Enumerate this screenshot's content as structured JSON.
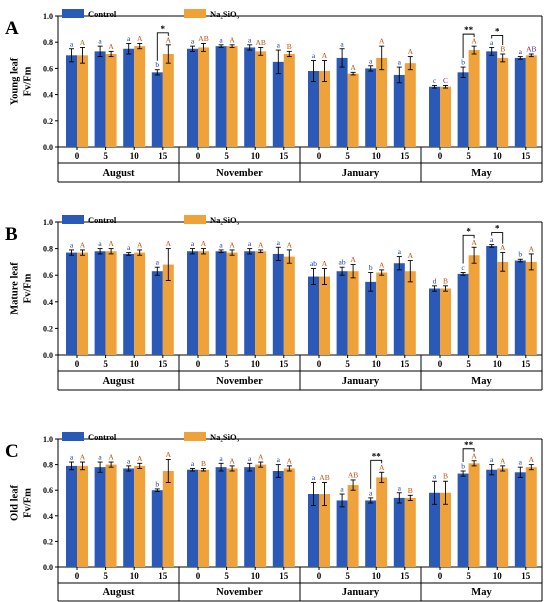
{
  "colors": {
    "control": "#2b59b8",
    "treatment": "#f0a23a",
    "upper_letter": "#b8520f",
    "lower_letter": "#1a3bb0",
    "purple_letter": "#7a1f8a"
  },
  "chart_data": [
    {
      "type": "bar",
      "panel": "A",
      "ylabel": "Young leaf\nFv/Fm",
      "ylim": [
        0,
        1.0
      ],
      "yticks": [
        "0.0",
        "0.2",
        "0.4",
        "0.6",
        "0.8",
        "1.0"
      ],
      "months": [
        "August",
        "November",
        "January",
        "May"
      ],
      "x_ticks": [
        "0",
        "5",
        "10",
        "15"
      ],
      "series": [
        {
          "name": "Control",
          "values": [
            [
              0.7,
              0.73,
              0.75,
              0.57
            ],
            [
              0.75,
              0.77,
              0.76,
              0.65
            ],
            [
              0.58,
              0.68,
              0.6,
              0.55
            ],
            [
              0.46,
              0.57,
              0.73,
              0.68
            ]
          ],
          "errors": [
            [
              0.05,
              0.04,
              0.04,
              0.02
            ],
            [
              0.02,
              0.01,
              0.02,
              0.09
            ],
            [
              0.08,
              0.07,
              0.02,
              0.06
            ],
            [
              0.01,
              0.04,
              0.03,
              0.01
            ]
          ],
          "letters": [
            [
              "a",
              "a",
              "a",
              "b"
            ],
            [
              "a",
              "a",
              "a",
              "a"
            ],
            [
              "a",
              "a",
              "a",
              "a"
            ],
            [
              "c",
              "b",
              "a",
              "a"
            ]
          ]
        },
        {
          "name": "Na₂SiO₃",
          "values": [
            [
              0.7,
              0.71,
              0.77,
              0.71
            ],
            [
              0.76,
              0.77,
              0.73,
              0.71
            ],
            [
              0.58,
              0.56,
              0.68,
              0.64
            ],
            [
              0.46,
              0.74,
              0.68,
              0.7
            ]
          ],
          "errors": [
            [
              0.06,
              0.02,
              0.02,
              0.07
            ],
            [
              0.03,
              0.01,
              0.03,
              0.02
            ],
            [
              0.08,
              0.01,
              0.09,
              0.05
            ],
            [
              0.01,
              0.03,
              0.03,
              0.01
            ]
          ],
          "letters": [
            [
              "A",
              "A",
              "A",
              "A"
            ],
            [
              "AB",
              "A",
              "AB",
              "B"
            ],
            [
              "A",
              "A",
              "A",
              "A"
            ],
            [
              "C",
              "A",
              "B",
              "AB"
            ]
          ]
        }
      ],
      "significance": [
        {
          "month": 0,
          "tick": 3,
          "label": "*"
        },
        {
          "month": 3,
          "tick": 1,
          "label": "**"
        },
        {
          "month": 3,
          "tick": 2,
          "label": "*"
        }
      ]
    },
    {
      "type": "bar",
      "panel": "B",
      "ylabel": "Mature leaf\nFv/Fm",
      "ylim": [
        0,
        1.0
      ],
      "yticks": [
        "0.0",
        "0.2",
        "0.4",
        "0.6",
        "0.8",
        "1.0"
      ],
      "months": [
        "August",
        "November",
        "January",
        "May"
      ],
      "x_ticks": [
        "0",
        "5",
        "10",
        "15"
      ],
      "series": [
        {
          "name": "Control",
          "values": [
            [
              0.77,
              0.78,
              0.76,
              0.63
            ],
            [
              0.78,
              0.78,
              0.78,
              0.76
            ],
            [
              0.59,
              0.63,
              0.55,
              0.69
            ],
            [
              0.5,
              0.61,
              0.82,
              0.71
            ]
          ],
          "errors": [
            [
              0.02,
              0.02,
              0.01,
              0.03
            ],
            [
              0.02,
              0.01,
              0.02,
              0.05
            ],
            [
              0.06,
              0.03,
              0.07,
              0.05
            ],
            [
              0.02,
              0.01,
              0.01,
              0.01
            ]
          ],
          "letters": [
            [
              "a",
              "a",
              "a",
              "a"
            ],
            [
              "a",
              "a",
              "a",
              "a"
            ],
            [
              "ab",
              "ab",
              "b",
              "a"
            ],
            [
              "d",
              "c",
              "a",
              "b"
            ]
          ]
        },
        {
          "name": "Na₂SiO₃",
          "values": [
            [
              0.77,
              0.78,
              0.77,
              0.68
            ],
            [
              0.78,
              0.77,
              0.78,
              0.74
            ],
            [
              0.59,
              0.63,
              0.62,
              0.63
            ],
            [
              0.5,
              0.75,
              0.7,
              0.7
            ]
          ],
          "errors": [
            [
              0.02,
              0.02,
              0.02,
              0.12
            ],
            [
              0.02,
              0.02,
              0.01,
              0.05
            ],
            [
              0.06,
              0.05,
              0.02,
              0.08
            ],
            [
              0.02,
              0.06,
              0.07,
              0.06
            ]
          ],
          "letters": [
            [
              "A",
              "A",
              "A",
              "A"
            ],
            [
              "A",
              "A",
              "A",
              "A"
            ],
            [
              "A",
              "A",
              "A",
              "A"
            ],
            [
              "B",
              "A",
              "A",
              "A"
            ]
          ]
        }
      ],
      "significance": [
        {
          "month": 3,
          "tick": 1,
          "label": "*"
        },
        {
          "month": 3,
          "tick": 2,
          "label": "*"
        }
      ]
    },
    {
      "type": "bar",
      "panel": "C",
      "ylabel": "Old leaf\nFv/Fm",
      "ylim": [
        0,
        1.0
      ],
      "yticks": [
        "0.0",
        "0.2",
        "0.4",
        "0.6",
        "0.8",
        "1.0"
      ],
      "months": [
        "August",
        "November",
        "January",
        "May"
      ],
      "x_ticks": [
        "0",
        "5",
        "10",
        "15"
      ],
      "series": [
        {
          "name": "Control",
          "values": [
            [
              0.79,
              0.78,
              0.77,
              0.6
            ],
            [
              0.76,
              0.78,
              0.78,
              0.75
            ],
            [
              0.57,
              0.52,
              0.52,
              0.54
            ],
            [
              0.58,
              0.73,
              0.76,
              0.74
            ]
          ],
          "errors": [
            [
              0.03,
              0.04,
              0.02,
              0.01
            ],
            [
              0.01,
              0.03,
              0.03,
              0.05
            ],
            [
              0.09,
              0.05,
              0.02,
              0.04
            ],
            [
              0.09,
              0.02,
              0.04,
              0.04
            ]
          ],
          "letters": [
            [
              "a",
              "a",
              "a",
              "b"
            ],
            [
              "a",
              "a",
              "a",
              "a"
            ],
            [
              "a",
              "a",
              "a",
              "a"
            ],
            [
              "a",
              "b",
              "a",
              "a"
            ]
          ]
        },
        {
          "name": "Na₂SiO₃",
          "values": [
            [
              0.79,
              0.8,
              0.79,
              0.75
            ],
            [
              0.76,
              0.77,
              0.8,
              0.77
            ],
            [
              0.57,
              0.64,
              0.7,
              0.54
            ],
            [
              0.58,
              0.81,
              0.77,
              0.78
            ]
          ],
          "errors": [
            [
              0.03,
              0.02,
              0.02,
              0.09
            ],
            [
              0.01,
              0.02,
              0.02,
              0.02
            ],
            [
              0.09,
              0.04,
              0.04,
              0.02
            ],
            [
              0.09,
              0.02,
              0.02,
              0.02
            ]
          ],
          "letters": [
            [
              "A",
              "A",
              "A",
              "A"
            ],
            [
              "B",
              "A",
              "A",
              "A"
            ],
            [
              "AB",
              "AB",
              "A",
              "B"
            ],
            [
              "B",
              "A",
              "A",
              "A"
            ]
          ]
        }
      ],
      "significance": [
        {
          "month": 2,
          "tick": 2,
          "label": "**"
        },
        {
          "month": 3,
          "tick": 1,
          "label": "**"
        }
      ]
    }
  ]
}
